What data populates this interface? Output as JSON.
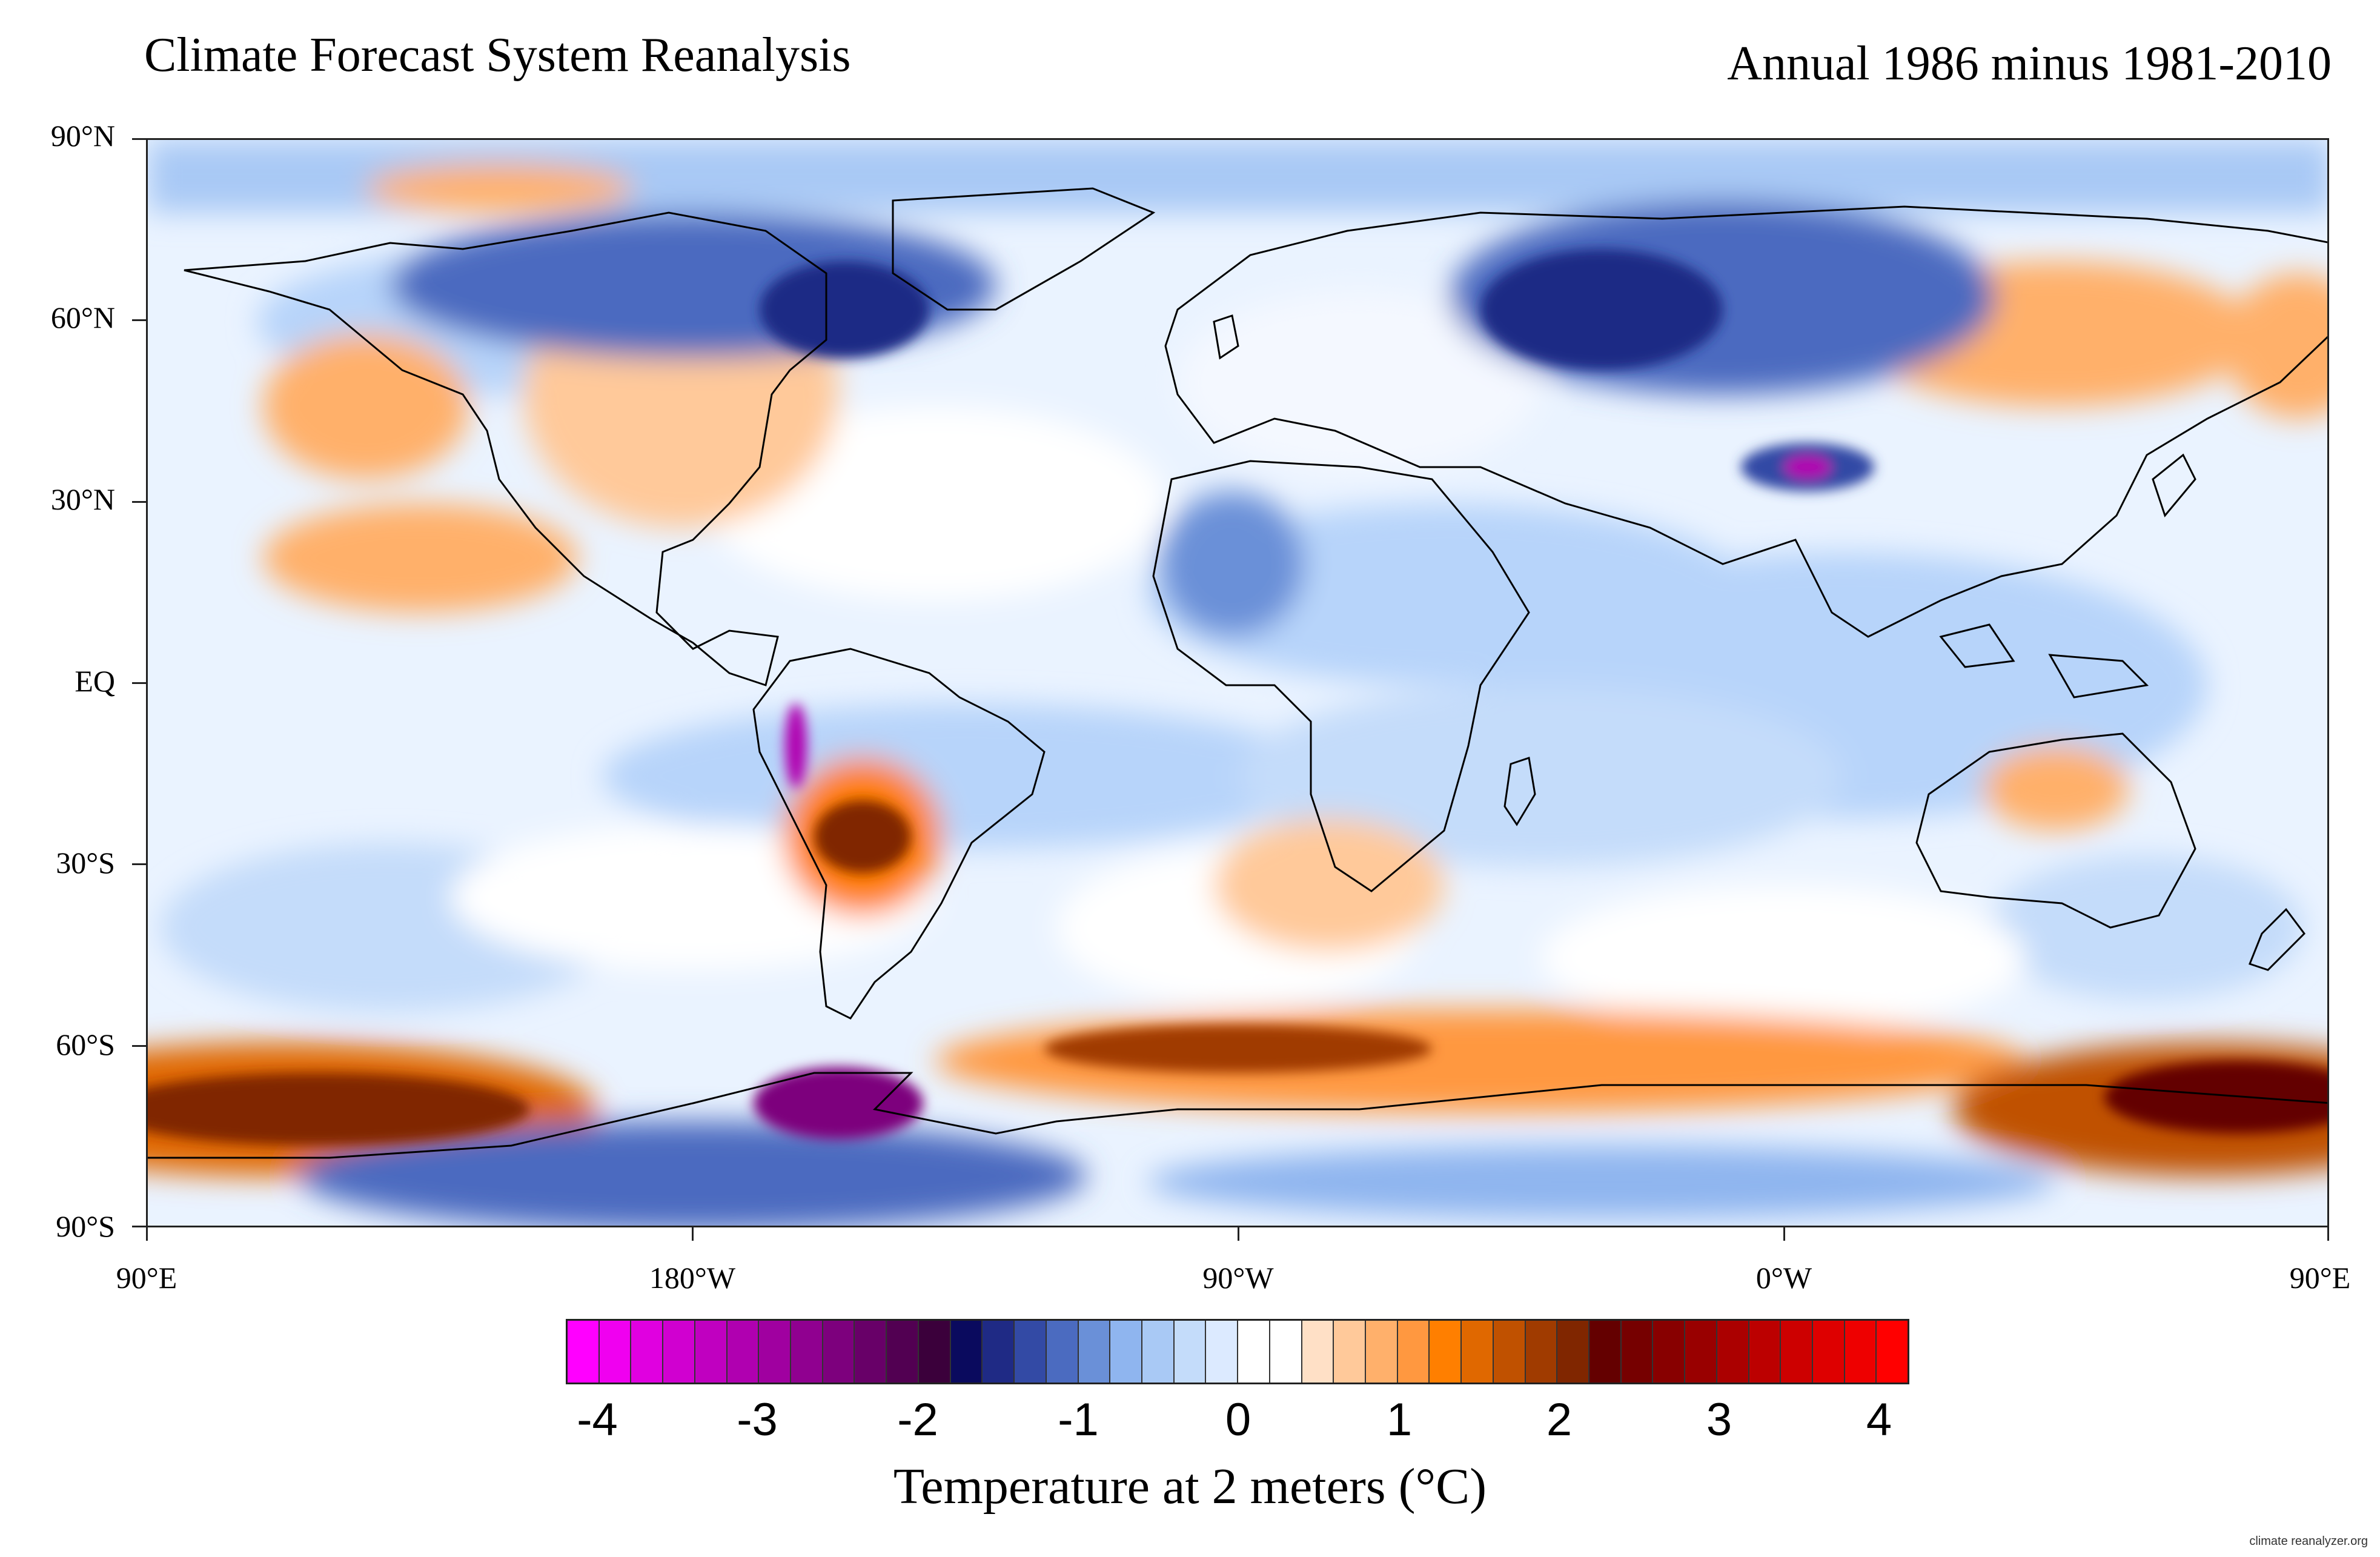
{
  "header": {
    "title": "Climate Forecast System Reanalysis",
    "subtitle": "Annual 1986 minus 1981-2010"
  },
  "map": {
    "projection": "cylindrical equidistant",
    "lon_range": [
      "90°E",
      "90°E"
    ],
    "lat_labels": [
      "90°N",
      "60°N",
      "30°N",
      "EQ",
      "30°S",
      "60°S",
      "90°S"
    ],
    "lon_labels": [
      "90°E",
      "180°W",
      "90°W",
      "0°W",
      "90°E"
    ],
    "anomaly_regions": [
      {
        "name": "Southern Ocean warm band",
        "sign": "positive",
        "magnitude": "2 to 3"
      },
      {
        "name": "Antarctic Peninsula region",
        "sign": "negative",
        "magnitude": "-2 to -3"
      },
      {
        "name": "Northern Canada / Hudson Bay",
        "sign": "negative",
        "magnitude": "-1.5 to -2"
      },
      {
        "name": "Western Russia",
        "sign": "negative",
        "magnitude": "-1.5 to -2"
      },
      {
        "name": "Northern Siberia",
        "sign": "positive",
        "magnitude": "0.5 to 1.5"
      },
      {
        "name": "Subtropical South America",
        "sign": "positive",
        "magnitude": "1 to 2"
      },
      {
        "name": "North Pacific",
        "sign": "positive",
        "magnitude": "0.5 to 1.5"
      },
      {
        "name": "Andes",
        "sign": "negative",
        "magnitude": "-3 to -4"
      },
      {
        "name": "Tibetan Plateau",
        "sign": "negative",
        "magnitude": "-2 to -3"
      }
    ]
  },
  "colorbar": {
    "title": "Temperature at 2 meters (°C)",
    "tick_labels": [
      "-4",
      "-3",
      "-2",
      "-1",
      "0",
      "1",
      "2",
      "3",
      "4"
    ],
    "colors": [
      "#ff00ff",
      "#f000f0",
      "#e000e0",
      "#d000d0",
      "#c000c0",
      "#b000b0",
      "#a000a0",
      "#900090",
      "#7d007d",
      "#680068",
      "#520052",
      "#3b003b",
      "#0a0a5e",
      "#1f2a85",
      "#334aa5",
      "#4b6bc0",
      "#6a90d8",
      "#8fb5ef",
      "#a9c9f5",
      "#c4dcfa",
      "#dceaff",
      "#ffffff",
      "#ffffff",
      "#ffe0c6",
      "#ffc99a",
      "#ffb06b",
      "#ff9840",
      "#ff7f00",
      "#e06800",
      "#c05100",
      "#a03b00",
      "#802600",
      "#640000",
      "#760000",
      "#880000",
      "#990000",
      "#ab0000",
      "#bc0000",
      "#cd0000",
      "#de0000",
      "#ee0000",
      "#ff0000"
    ]
  },
  "credit": "climate reanalyzer.org"
}
